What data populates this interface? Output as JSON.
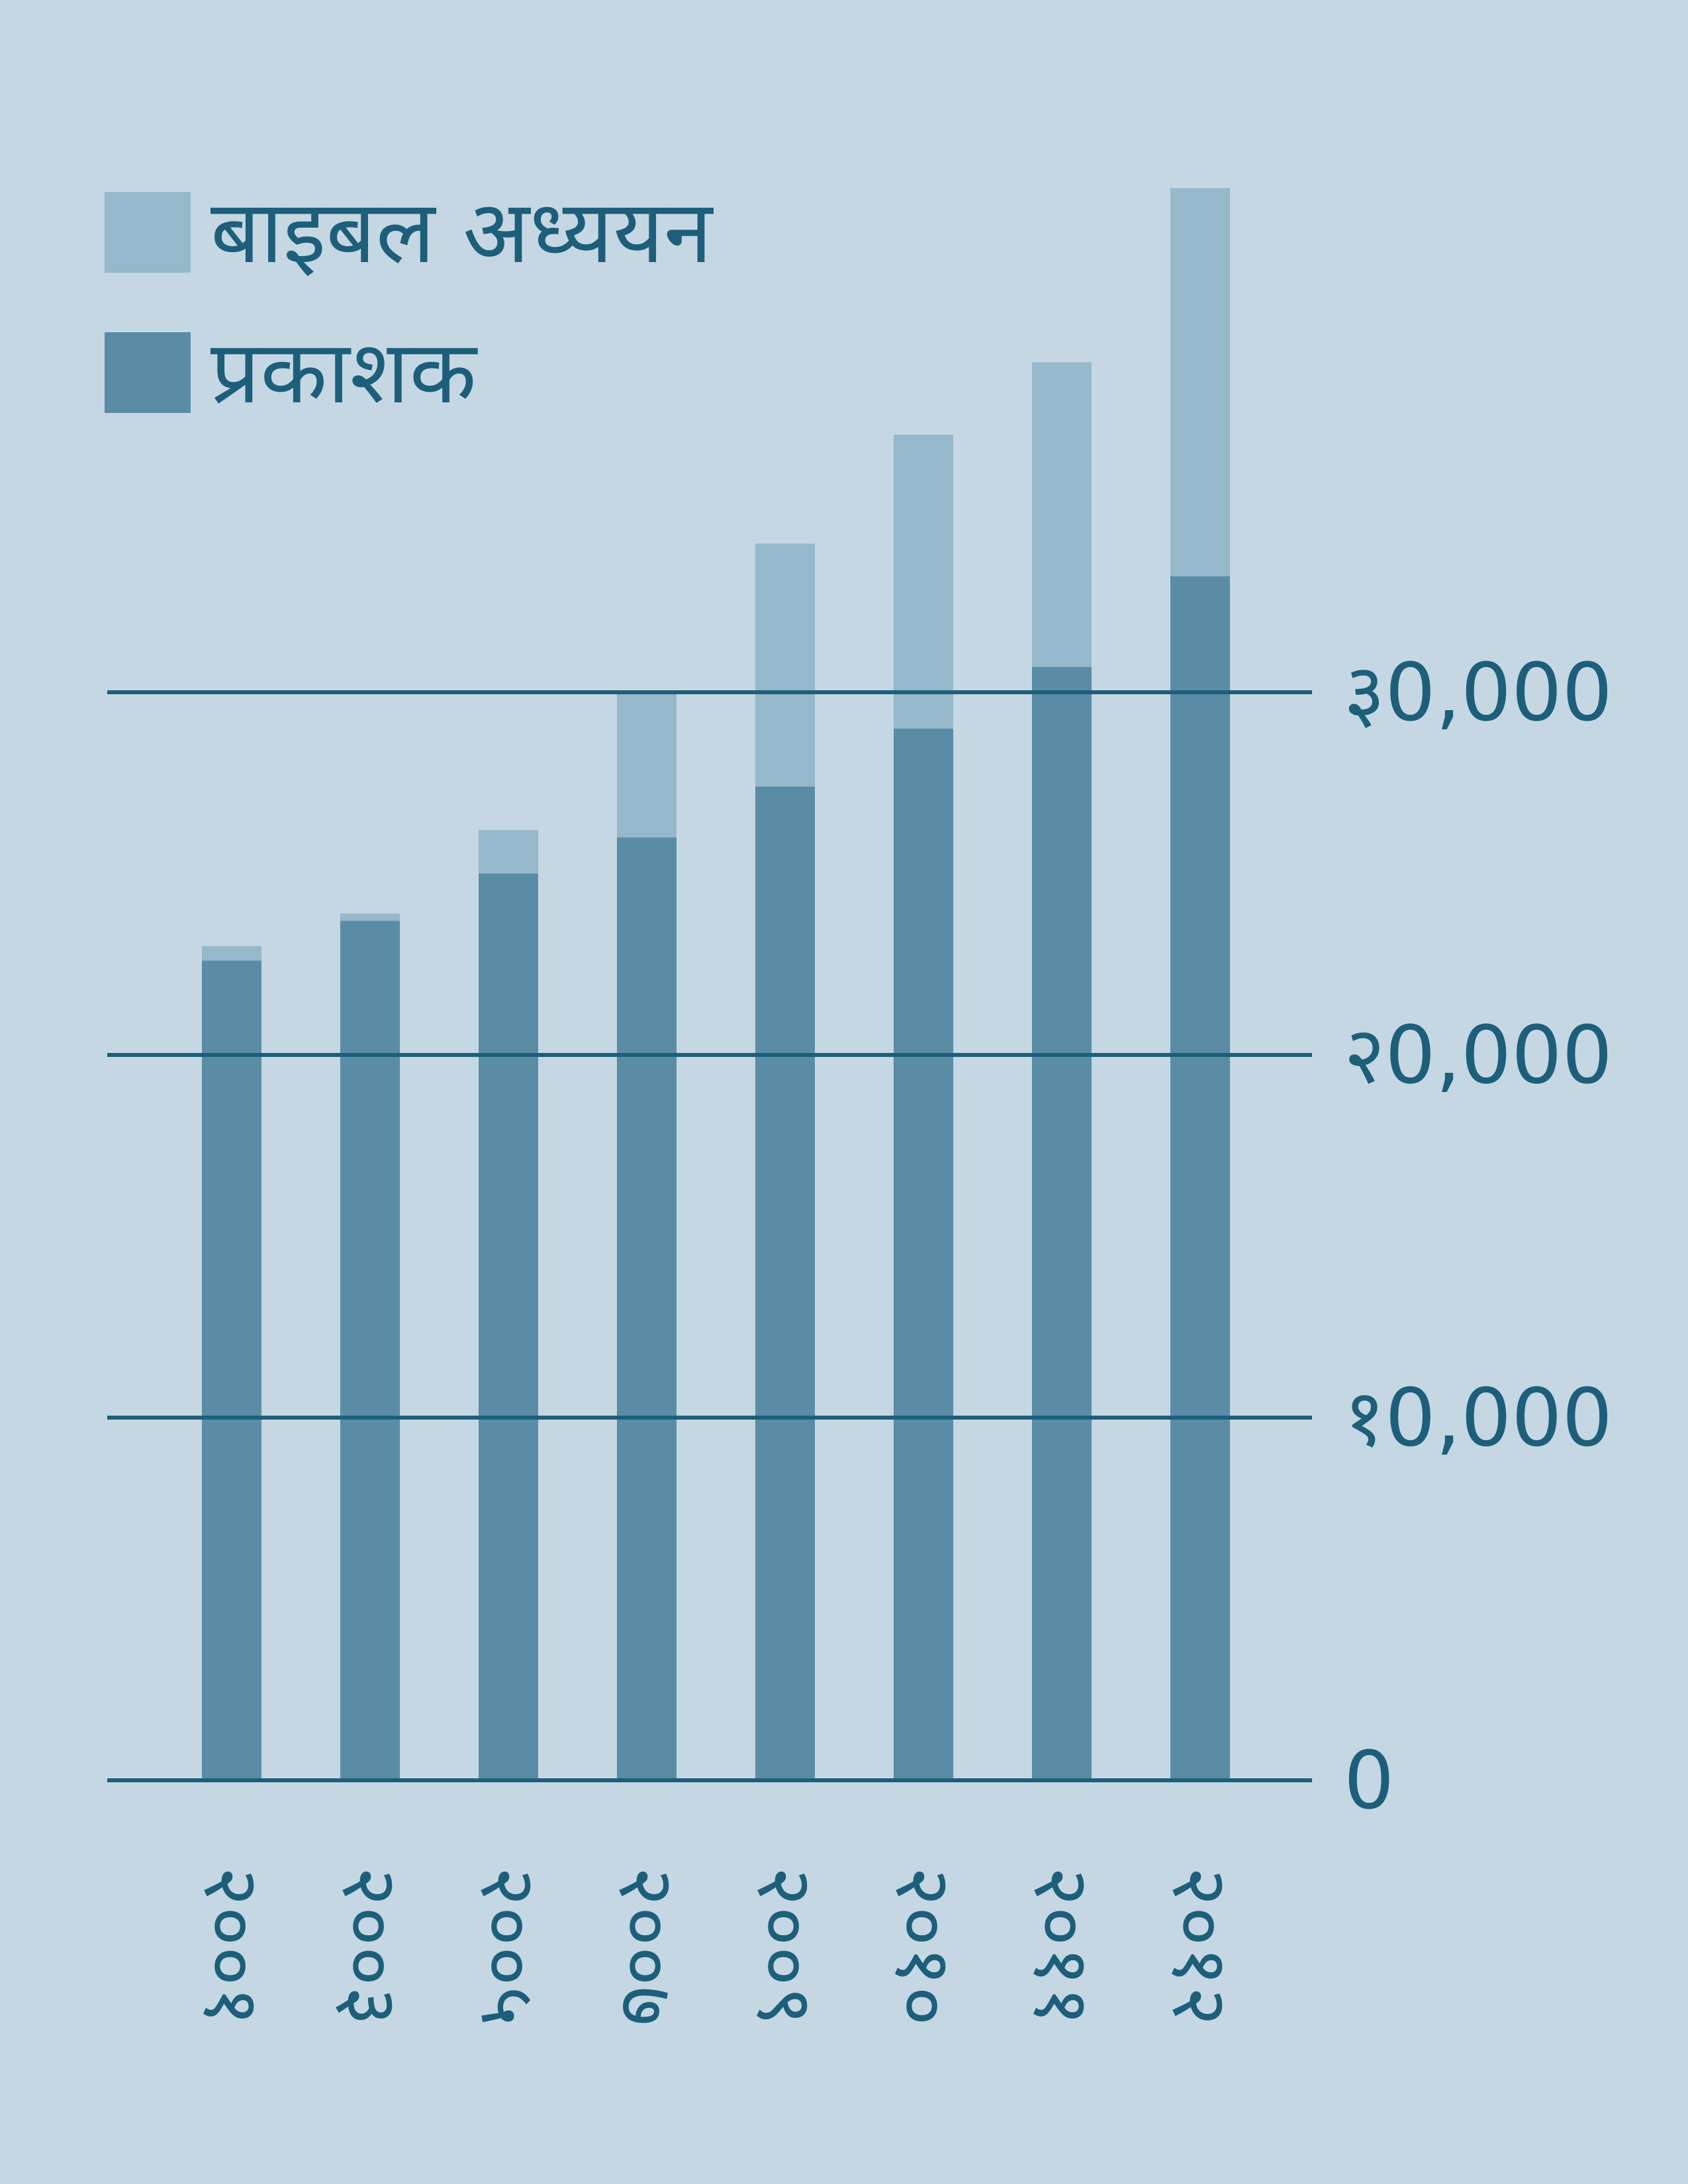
{
  "chart_data": {
    "type": "bar",
    "stacked": true,
    "title": "",
    "xlabel": "",
    "ylabel": "",
    "categories": [
      "२००१",
      "२००३",
      "२००५",
      "२००७",
      "२००९",
      "२०१०",
      "२०११",
      "२०१२"
    ],
    "series": [
      {
        "name": "प्रकाशक",
        "color": "#5a8ca5",
        "values": [
          22600,
          23700,
          25000,
          26000,
          27400,
          29000,
          30700,
          33200
        ]
      },
      {
        "name": "बाइबल अध्ययन",
        "color": "#96b8cb",
        "values": [
          400,
          200,
          1200,
          4000,
          6700,
          8100,
          8400,
          10700
        ]
      }
    ],
    "ylim": [
      0,
      44000
    ],
    "yticks": [
      0,
      10000,
      20000,
      30000
    ],
    "ytick_labels": [
      "0",
      "१0,000",
      "२0,000",
      "३0,000"
    ],
    "grid": true,
    "legend_position": "top-left",
    "y_axis_side": "right",
    "colors": {
      "background": "#c5d7e3",
      "gridline": "#1d5f7a",
      "text": "#1d5f7a"
    }
  }
}
